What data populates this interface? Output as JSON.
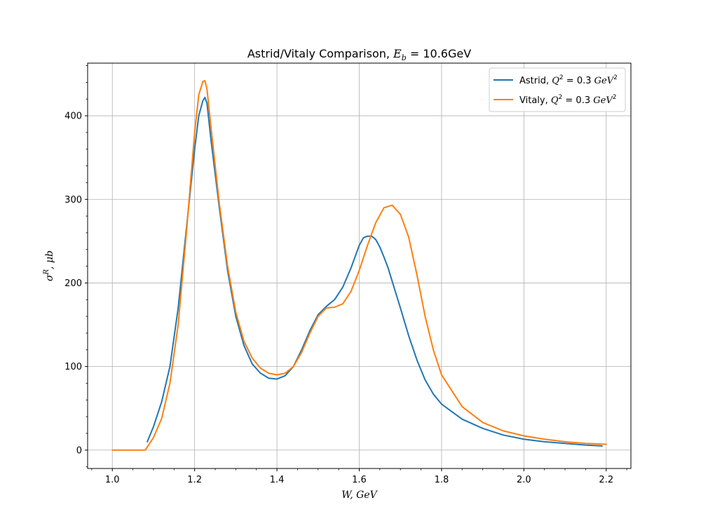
{
  "chart_data": {
    "type": "line",
    "title": "Astrid/Vitaly Comparison, E_b = 10.6GeV",
    "title_parts": {
      "text": "Astrid/Vitaly Comparison, ",
      "sym": "E",
      "sub": "b",
      "rest": " = 10.6GeV"
    },
    "xlabel": "W, GeV",
    "ylabel": "σ^R, μb",
    "ylabel_parts": {
      "sym": "σ",
      "sup": "R",
      "rest": ", μb"
    },
    "xlim": [
      0.94,
      2.26
    ],
    "ylim": [
      -22,
      463
    ],
    "xticks": [
      1.0,
      1.2,
      1.4,
      1.6,
      1.8,
      2.0,
      2.2
    ],
    "xtick_labels": [
      "1.0",
      "1.2",
      "1.4",
      "1.6",
      "1.8",
      "2.0",
      "2.2"
    ],
    "yticks": [
      0,
      100,
      200,
      300,
      400
    ],
    "ytick_labels": [
      "0",
      "100",
      "200",
      "300",
      "400"
    ],
    "grid": true,
    "legend_position": "top-right",
    "series": [
      {
        "name": "Astrid, Q^2 = 0.3 GeV^2",
        "legend_parts": {
          "text": "Astrid, ",
          "sym": "Q",
          "sup": "2",
          "mid": " = 0.3 ",
          "unit": "GeV",
          "unit_sup": "2"
        },
        "color": "#1f77b4",
        "x": [
          1.085,
          1.1,
          1.12,
          1.14,
          1.16,
          1.18,
          1.2,
          1.21,
          1.22,
          1.225,
          1.23,
          1.24,
          1.26,
          1.28,
          1.3,
          1.32,
          1.34,
          1.36,
          1.38,
          1.4,
          1.42,
          1.44,
          1.46,
          1.48,
          1.5,
          1.52,
          1.54,
          1.56,
          1.58,
          1.6,
          1.61,
          1.62,
          1.63,
          1.64,
          1.65,
          1.66,
          1.67,
          1.68,
          1.69,
          1.7,
          1.72,
          1.74,
          1.76,
          1.78,
          1.8,
          1.85,
          1.9,
          1.95,
          2.0,
          2.05,
          2.1,
          2.15,
          2.19
        ],
        "y": [
          10,
          28,
          58,
          100,
          170,
          265,
          360,
          400,
          418,
          422,
          415,
          370,
          290,
          215,
          160,
          125,
          103,
          92,
          86,
          85,
          89,
          100,
          120,
          143,
          162,
          172,
          180,
          195,
          218,
          245,
          254,
          256,
          256,
          252,
          243,
          231,
          218,
          202,
          186,
          170,
          137,
          108,
          84,
          67,
          55,
          37,
          26,
          18,
          13,
          10,
          8,
          6,
          5
        ]
      },
      {
        "name": "Vitaly, Q^2 = 0.3 GeV^2",
        "legend_parts": {
          "text": "Vitaly, ",
          "sym": "Q",
          "sup": "2",
          "mid": " = 0.3 ",
          "unit": "GeV",
          "unit_sup": "2"
        },
        "color": "#ff7f0e",
        "x": [
          1.0,
          1.04,
          1.08,
          1.1,
          1.12,
          1.14,
          1.16,
          1.18,
          1.2,
          1.21,
          1.22,
          1.225,
          1.23,
          1.24,
          1.26,
          1.28,
          1.3,
          1.32,
          1.34,
          1.36,
          1.38,
          1.4,
          1.42,
          1.44,
          1.46,
          1.48,
          1.5,
          1.52,
          1.54,
          1.56,
          1.58,
          1.6,
          1.62,
          1.64,
          1.66,
          1.68,
          1.7,
          1.72,
          1.74,
          1.76,
          1.78,
          1.8,
          1.85,
          1.9,
          1.95,
          2.0,
          2.05,
          2.1,
          2.15,
          2.2
        ],
        "y": [
          0,
          0,
          0,
          15,
          38,
          80,
          150,
          260,
          380,
          425,
          441,
          442,
          432,
          385,
          295,
          220,
          165,
          130,
          110,
          98,
          92,
          90,
          92,
          100,
          117,
          140,
          160,
          170,
          171,
          175,
          190,
          215,
          245,
          272,
          290,
          293,
          282,
          255,
          210,
          160,
          120,
          90,
          52,
          33,
          23,
          17,
          13,
          10,
          8,
          7
        ]
      }
    ]
  }
}
